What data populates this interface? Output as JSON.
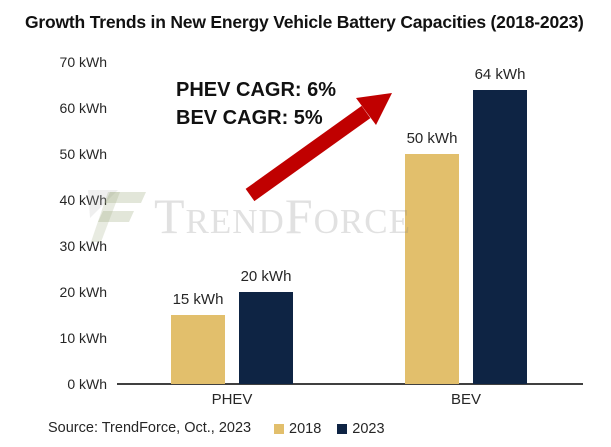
{
  "chart_data": {
    "type": "bar",
    "title": "Growth Trends in New Energy Vehicle Battery Capacities (2018-2023)",
    "categories": [
      "PHEV",
      "BEV"
    ],
    "series": [
      {
        "name": "2018",
        "color": "#E2BF6C",
        "values": [
          15,
          50
        ]
      },
      {
        "name": "2023",
        "color": "#0E2444",
        "values": [
          20,
          64
        ]
      }
    ],
    "unit": "kWh",
    "ylim": [
      0,
      70
    ],
    "ytick_step": 10,
    "ytick_labels": [
      "0 kWh",
      "10 kWh",
      "20 kWh",
      "30 kWh",
      "40 kWh",
      "50 kWh",
      "60 kWh",
      "70 kWh"
    ],
    "bar_value_labels": [
      "15 kWh",
      "20 kWh",
      "50 kWh",
      "64 kWh"
    ],
    "grid": false,
    "legend_position": "bottom",
    "annotations": [
      "PHEV CAGR: 6%",
      "BEV CAGR: 5%"
    ],
    "arrow_color": "#C00000",
    "watermark": "TrendForce",
    "source": "Source: TrendForce, Oct., 2023"
  }
}
